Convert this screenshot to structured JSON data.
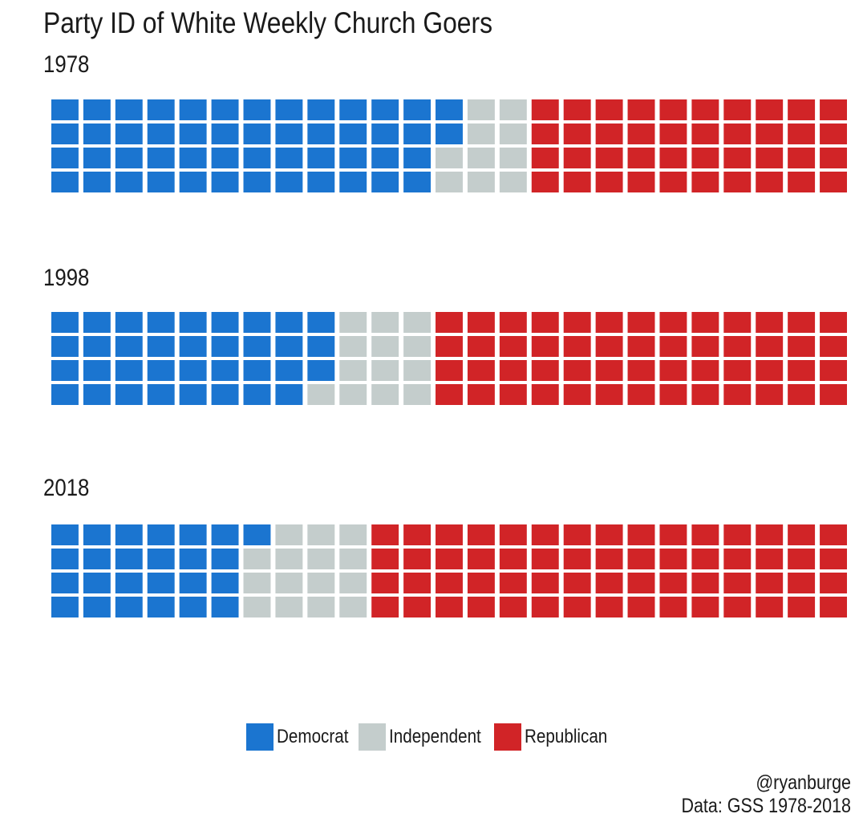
{
  "chart_data": {
    "type": "waffle",
    "title": "Party ID of White Weekly Church Goers",
    "units_per_panel": 100,
    "categories": [
      "Democrat",
      "Independent",
      "Republican"
    ],
    "colors": {
      "Democrat": "#1b75d0",
      "Independent": "#c4cdcc",
      "Republican": "#d12427"
    },
    "panels": [
      {
        "label": "1978",
        "values": {
          "Democrat": 50,
          "Independent": 10,
          "Republican": 40
        }
      },
      {
        "label": "1998",
        "values": {
          "Democrat": 35,
          "Independent": 13,
          "Republican": 52
        }
      },
      {
        "label": "2018",
        "values": {
          "Democrat": 25,
          "Independent": 15,
          "Republican": 60
        }
      }
    ],
    "legend": {
      "position": "bottom",
      "entries": [
        "Democrat",
        "Independent",
        "Republican"
      ]
    },
    "caption": [
      "@ryanburge",
      "Data: GSS 1978-2018"
    ]
  }
}
